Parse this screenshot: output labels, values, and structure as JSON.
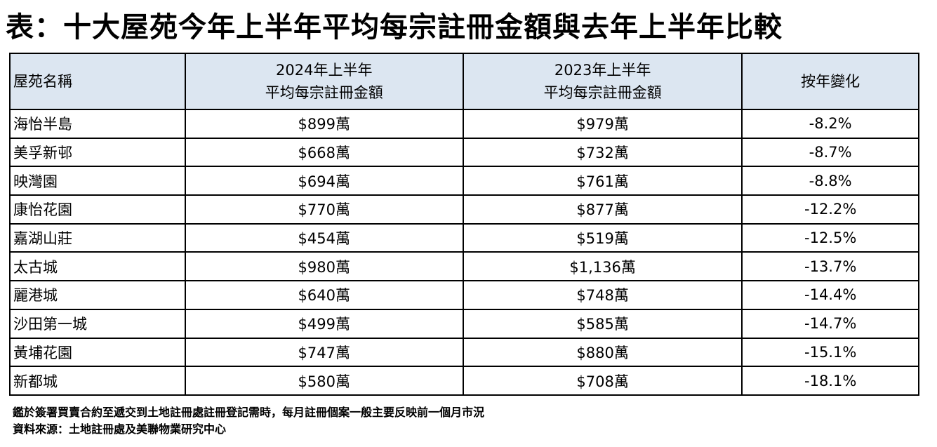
{
  "title": "表：十大屋苑今年上半年平均每宗註冊金額與去年上半年比較",
  "table": {
    "header": [
      [
        "屋苑名稱"
      ],
      [
        "2024年上半年",
        "平均每宗註冊金額"
      ],
      [
        "2023年上半年",
        "平均每宗註冊金額"
      ],
      [
        "按年變化"
      ]
    ],
    "rows": [
      [
        "海怡半島",
        "$899萬",
        "$979萬",
        "-8.2%"
      ],
      [
        "美孚新邨",
        "$668萬",
        "$732萬",
        "-8.7%"
      ],
      [
        "映灣園",
        "$694萬",
        "$761萬",
        "-8.8%"
      ],
      [
        "康怡花園",
        "$770萬",
        "$877萬",
        "-12.2%"
      ],
      [
        "嘉湖山莊",
        "$454萬",
        "$519萬",
        "-12.5%"
      ],
      [
        "太古城",
        "$980萬",
        "$1,136萬",
        "-13.7%"
      ],
      [
        "麗港城",
        "$640萬",
        "$748萬",
        "-14.4%"
      ],
      [
        "沙田第一城",
        "$499萬",
        "$585萬",
        "-14.7%"
      ],
      [
        "黃埔花園",
        "$747萬",
        "$880萬",
        "-15.1%"
      ],
      [
        "新都城",
        "$580萬",
        "$708萬",
        "-18.1%"
      ]
    ]
  },
  "notes": [
    "鑑於簽署買賣合約至遞交到土地註冊處註冊登記需時，每月註冊個案一般主要反映前一個月市況",
    "資料來源：土地註冊處及美聯物業研究中心"
  ]
}
